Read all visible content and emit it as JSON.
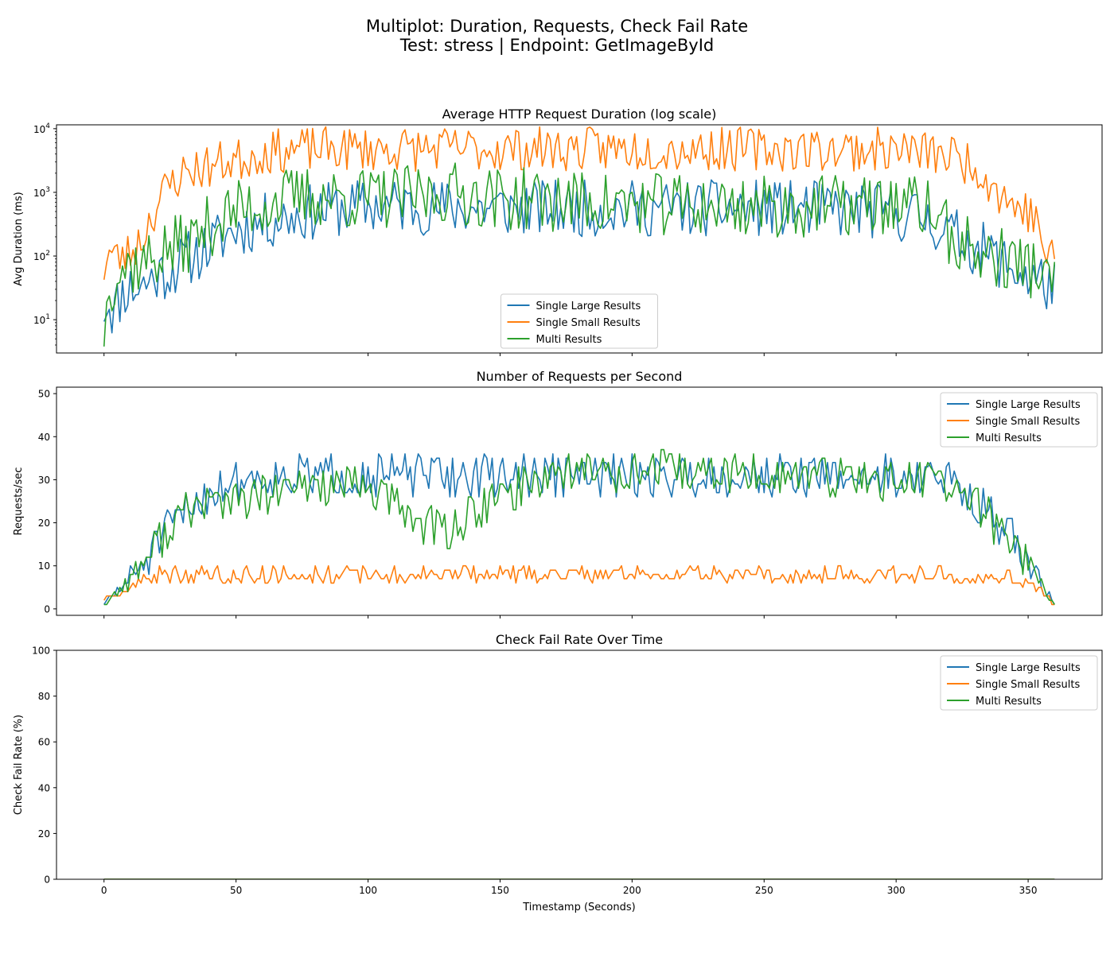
{
  "figure": {
    "title_line1": "Multiplot: Duration, Requests, Check Fail Rate",
    "title_line2": "Test: stress | Endpoint: GetImageById"
  },
  "colors": {
    "Single Large Results": "#1f77b4",
    "Single Small Results": "#ff7f0e",
    "Multi Results": "#2ca02c"
  },
  "chart_data": [
    {
      "type": "line",
      "title": "Average HTTP Request Duration (log scale)",
      "xlabel": "",
      "ylabel": "Avg Duration (ms)",
      "yscale": "log",
      "ylim": [
        3,
        11500
      ],
      "xlim": [
        -18,
        378
      ],
      "xticks": [
        0,
        50,
        100,
        150,
        200,
        250,
        300,
        350
      ],
      "yticks": [
        10,
        100,
        1000,
        10000
      ],
      "ytick_labels": [
        [
          "10",
          "1"
        ],
        [
          "10",
          "2"
        ],
        [
          "10",
          "3"
        ],
        [
          "10",
          "4"
        ]
      ],
      "legend": "lower-center",
      "series": [
        {
          "name": "Single Large Results",
          "keypoints": [
            [
              0,
              11
            ],
            [
              2,
              16
            ],
            [
              4,
              14
            ],
            [
              8,
              30
            ],
            [
              15,
              35
            ],
            [
              20,
              50
            ],
            [
              25,
              60
            ],
            [
              30,
              80
            ],
            [
              35,
              110
            ],
            [
              40,
              140
            ],
            [
              45,
              200
            ],
            [
              50,
              260
            ],
            [
              55,
              300
            ],
            [
              60,
              340
            ],
            [
              65,
              380
            ],
            [
              70,
              420
            ],
            [
              80,
              500
            ],
            [
              90,
              560
            ],
            [
              100,
              600
            ],
            [
              110,
              620
            ],
            [
              120,
              600
            ],
            [
              130,
              580
            ],
            [
              140,
              570
            ],
            [
              150,
              560
            ],
            [
              200,
              560
            ],
            [
              250,
              560
            ],
            [
              280,
              540
            ],
            [
              300,
              470
            ],
            [
              310,
              400
            ],
            [
              315,
              320
            ],
            [
              320,
              230
            ],
            [
              325,
              180
            ],
            [
              330,
              140
            ],
            [
              335,
              110
            ],
            [
              340,
              80
            ],
            [
              345,
              60
            ],
            [
              350,
              45
            ],
            [
              355,
              40
            ],
            [
              358,
              35
            ],
            [
              360,
              30
            ]
          ],
          "jitter": 0.45,
          "seed": 11
        },
        {
          "name": "Single Small Results",
          "keypoints": [
            [
              0,
              48
            ],
            [
              2,
              120
            ],
            [
              5,
              90
            ],
            [
              10,
              110
            ],
            [
              15,
              200
            ],
            [
              20,
              600
            ],
            [
              25,
              1300
            ],
            [
              30,
              2000
            ],
            [
              35,
              2400
            ],
            [
              40,
              2500
            ],
            [
              45,
              3000
            ],
            [
              50,
              3200
            ],
            [
              55,
              3600
            ],
            [
              60,
              4200
            ],
            [
              70,
              4600
            ],
            [
              80,
              4800
            ],
            [
              100,
              4800
            ],
            [
              150,
              4800
            ],
            [
              200,
              4800
            ],
            [
              250,
              4800
            ],
            [
              300,
              4700
            ],
            [
              310,
              4300
            ],
            [
              320,
              3800
            ],
            [
              325,
              3200
            ],
            [
              330,
              2700
            ],
            [
              335,
              1500
            ],
            [
              340,
              900
            ],
            [
              345,
              600
            ],
            [
              350,
              500
            ],
            [
              353,
              350
            ],
            [
              355,
              200
            ],
            [
              357,
              100
            ],
            [
              360,
              80
            ]
          ],
          "jitter": 0.35,
          "seed": 23
        },
        {
          "name": "Multi Results",
          "keypoints": [
            [
              0,
              4.5
            ],
            [
              2,
              30
            ],
            [
              5,
              60
            ],
            [
              10,
              70
            ],
            [
              15,
              80
            ],
            [
              20,
              100
            ],
            [
              25,
              130
            ],
            [
              30,
              150
            ],
            [
              35,
              200
            ],
            [
              40,
              300
            ],
            [
              45,
              400
            ],
            [
              50,
              500
            ],
            [
              60,
              650
            ],
            [
              70,
              800
            ],
            [
              80,
              850
            ],
            [
              100,
              800
            ],
            [
              120,
              850
            ],
            [
              130,
              1000
            ],
            [
              140,
              900
            ],
            [
              150,
              800
            ],
            [
              200,
              650
            ],
            [
              250,
              600
            ],
            [
              280,
              600
            ],
            [
              300,
              650
            ],
            [
              310,
              600
            ],
            [
              315,
              450
            ],
            [
              320,
              200
            ],
            [
              325,
              150
            ],
            [
              330,
              110
            ],
            [
              335,
              100
            ],
            [
              340,
              90
            ],
            [
              345,
              80
            ],
            [
              350,
              70
            ],
            [
              355,
              60
            ],
            [
              358,
              30
            ],
            [
              359,
              14
            ],
            [
              360,
              85
            ]
          ],
          "jitter": 0.5,
          "seed": 37
        }
      ]
    },
    {
      "type": "line",
      "title": "Number of Requests per Second",
      "xlabel": "",
      "ylabel": "Requests/sec",
      "ylim": [
        -1.5,
        51.5
      ],
      "xlim": [
        -18,
        378
      ],
      "xticks": [
        0,
        50,
        100,
        150,
        200,
        250,
        300,
        350
      ],
      "yticks": [
        0,
        10,
        20,
        30,
        40,
        50
      ],
      "legend": "upper-right",
      "series": [
        {
          "name": "Single Large Results",
          "keypoints": [
            [
              0,
              1
            ],
            [
              5,
              4
            ],
            [
              10,
              7
            ],
            [
              15,
              11
            ],
            [
              20,
              15
            ],
            [
              25,
              19
            ],
            [
              30,
              22
            ],
            [
              35,
              25
            ],
            [
              40,
              27
            ],
            [
              45,
              29
            ],
            [
              50,
              30
            ],
            [
              60,
              31
            ],
            [
              100,
              31
            ],
            [
              150,
              31
            ],
            [
              200,
              31
            ],
            [
              250,
              31
            ],
            [
              300,
              31
            ],
            [
              320,
              30
            ],
            [
              325,
              28
            ],
            [
              330,
              25
            ],
            [
              335,
              22
            ],
            [
              340,
              19
            ],
            [
              345,
              15
            ],
            [
              350,
              11
            ],
            [
              355,
              6
            ],
            [
              360,
              1
            ]
          ],
          "jitter": 5,
          "seed": 51
        },
        {
          "name": "Single Small Results",
          "keypoints": [
            [
              0,
              2
            ],
            [
              5,
              3
            ],
            [
              10,
              5
            ],
            [
              15,
              7
            ],
            [
              20,
              8
            ],
            [
              30,
              8
            ],
            [
              60,
              8
            ],
            [
              100,
              8
            ],
            [
              150,
              8
            ],
            [
              200,
              8
            ],
            [
              250,
              8
            ],
            [
              300,
              8
            ],
            [
              340,
              8
            ],
            [
              345,
              7
            ],
            [
              350,
              6
            ],
            [
              355,
              4
            ],
            [
              360,
              1
            ]
          ],
          "jitter": 3,
          "seed": 63
        },
        {
          "name": "Multi Results",
          "keypoints": [
            [
              0,
              1
            ],
            [
              5,
              4
            ],
            [
              10,
              7
            ],
            [
              15,
              11
            ],
            [
              20,
              15
            ],
            [
              25,
              19
            ],
            [
              30,
              22
            ],
            [
              35,
              24
            ],
            [
              40,
              25
            ],
            [
              50,
              25
            ],
            [
              60,
              26
            ],
            [
              80,
              29
            ],
            [
              100,
              28
            ],
            [
              110,
              24
            ],
            [
              120,
              20
            ],
            [
              130,
              18
            ],
            [
              140,
              22
            ],
            [
              150,
              26
            ],
            [
              160,
              29
            ],
            [
              170,
              32
            ],
            [
              200,
              32
            ],
            [
              250,
              31
            ],
            [
              300,
              30
            ],
            [
              320,
              29
            ],
            [
              325,
              27
            ],
            [
              330,
              24
            ],
            [
              335,
              21
            ],
            [
              340,
              18
            ],
            [
              345,
              15
            ],
            [
              350,
              11
            ],
            [
              355,
              6
            ],
            [
              360,
              1
            ]
          ],
          "jitter": 5,
          "seed": 77
        }
      ]
    },
    {
      "type": "line",
      "title": "Check Fail Rate Over Time",
      "xlabel": "Timestamp (Seconds)",
      "ylabel": "Check Fail Rate (%)",
      "ylim": [
        0,
        100
      ],
      "xlim": [
        -18,
        378
      ],
      "xticks": [
        0,
        50,
        100,
        150,
        200,
        250,
        300,
        350
      ],
      "yticks": [
        0,
        20,
        40,
        60,
        80,
        100
      ],
      "legend": "upper-right",
      "series": [
        {
          "name": "Single Large Results",
          "keypoints": [
            [
              0,
              0
            ],
            [
              360,
              0
            ]
          ],
          "jitter": 0,
          "seed": 1
        },
        {
          "name": "Single Small Results",
          "keypoints": [
            [
              0,
              0
            ],
            [
              360,
              0
            ]
          ],
          "jitter": 0,
          "seed": 2
        },
        {
          "name": "Multi Results",
          "keypoints": [
            [
              0,
              0
            ],
            [
              360,
              0
            ]
          ],
          "jitter": 0,
          "seed": 3
        }
      ]
    }
  ]
}
